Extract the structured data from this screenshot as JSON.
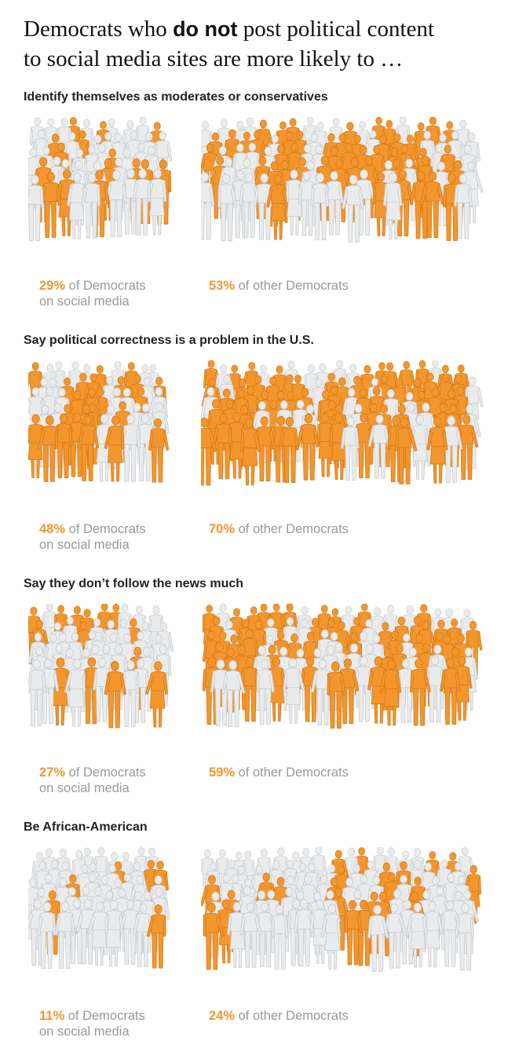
{
  "headline": {
    "line1_pre": "Democrats who ",
    "line1_emph": "do not",
    "line1_post": " post political content",
    "line2": "to social media sites are more likely to …"
  },
  "colors": {
    "highlight": "#f2962d",
    "base": "#e9ebec",
    "base_stroke": "#c9cccf",
    "highlight_stroke": "#d97a17"
  },
  "chart_data": [
    {
      "type": "pictograph",
      "title": "Identify themselves as moderates or conservatives",
      "groups": [
        {
          "pct_label": "29%",
          "label": "of Democrats on social media",
          "label_l1": "of Democrats",
          "label_l2": "on social media",
          "value": 29
        },
        {
          "pct_label": "53%",
          "label": "of other Democrats",
          "label_l1": "of other Democrats",
          "label_l2": "",
          "value": 53
        }
      ]
    },
    {
      "type": "pictograph",
      "title": "Say political correctness is a problem in the U.S.",
      "groups": [
        {
          "pct_label": "48%",
          "label": "of Democrats on social media",
          "label_l1": "of Democrats",
          "label_l2": "on social media",
          "value": 48
        },
        {
          "pct_label": "70%",
          "label": "of other Democrats",
          "label_l1": "of other Democrats",
          "label_l2": "",
          "value": 70
        }
      ]
    },
    {
      "type": "pictograph",
      "title": "Say they don’t follow the news much",
      "groups": [
        {
          "pct_label": "27%",
          "label": "of Democrats on social media",
          "label_l1": "of Democrats",
          "label_l2": "on social media",
          "value": 27
        },
        {
          "pct_label": "59%",
          "label": "of other Democrats",
          "label_l1": "of other Democrats",
          "label_l2": "",
          "value": 59
        }
      ]
    },
    {
      "type": "pictograph",
      "title": "Be African-American",
      "groups": [
        {
          "pct_label": "11%",
          "label": "of Democrats on social media",
          "label_l1": "of Democrats",
          "label_l2": "on social media",
          "value": 11
        },
        {
          "pct_label": "24%",
          "label": "of other Democrats",
          "label_l1": "of other Democrats",
          "label_l2": "",
          "value": 24
        }
      ]
    }
  ]
}
